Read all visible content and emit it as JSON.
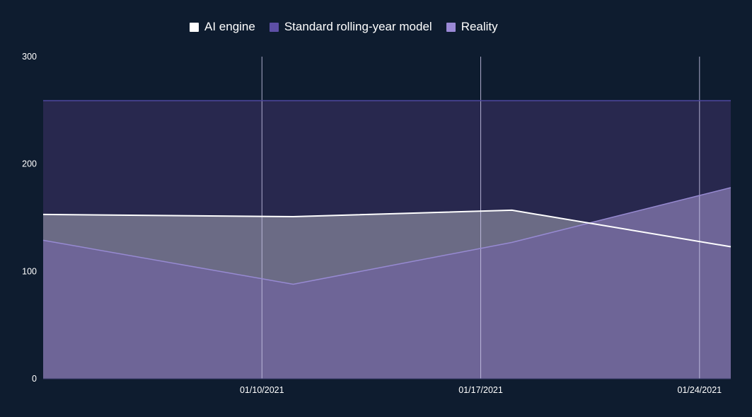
{
  "chart_data": {
    "type": "area",
    "legend_position": "top",
    "x": [
      "2021-01-03",
      "2021-01-11",
      "2021-01-18",
      "2021-01-25"
    ],
    "x_ticks": [
      {
        "date": "2021-01-10",
        "label": "01/10/2021"
      },
      {
        "date": "2021-01-17",
        "label": "01/17/2021"
      },
      {
        "date": "2021-01-24",
        "label": "01/24/2021"
      }
    ],
    "xlim": [
      "2021-01-03",
      "2021-01-25"
    ],
    "ylim": [
      0,
      300
    ],
    "y_ticks": [
      {
        "value": 0,
        "label": "0"
      },
      {
        "value": 100,
        "label": "100"
      },
      {
        "value": 200,
        "label": "200"
      },
      {
        "value": 300,
        "label": "300"
      }
    ],
    "grid": {
      "vertical": true,
      "horizontal": false
    },
    "series": [
      {
        "key": "standard",
        "name": "Standard rolling-year model",
        "color": "#5d4fa6",
        "values": [
          259,
          259,
          259,
          259
        ]
      },
      {
        "key": "ai",
        "name": "AI engine",
        "color": "#ffffff",
        "values": [
          153,
          151,
          157,
          123
        ]
      },
      {
        "key": "reality",
        "name": "Reality",
        "color": "#9a89d6",
        "values": [
          129,
          88,
          127,
          178
        ]
      }
    ],
    "legend_order": [
      "ai",
      "standard",
      "reality"
    ]
  },
  "colors": {
    "background": "#0e1c2f",
    "ai_fill": "#6b6b85",
    "standard_fill": "#28284e",
    "reality_fill": "#6e6597",
    "grid": "#c9c6e6",
    "text": "#ffffff"
  }
}
